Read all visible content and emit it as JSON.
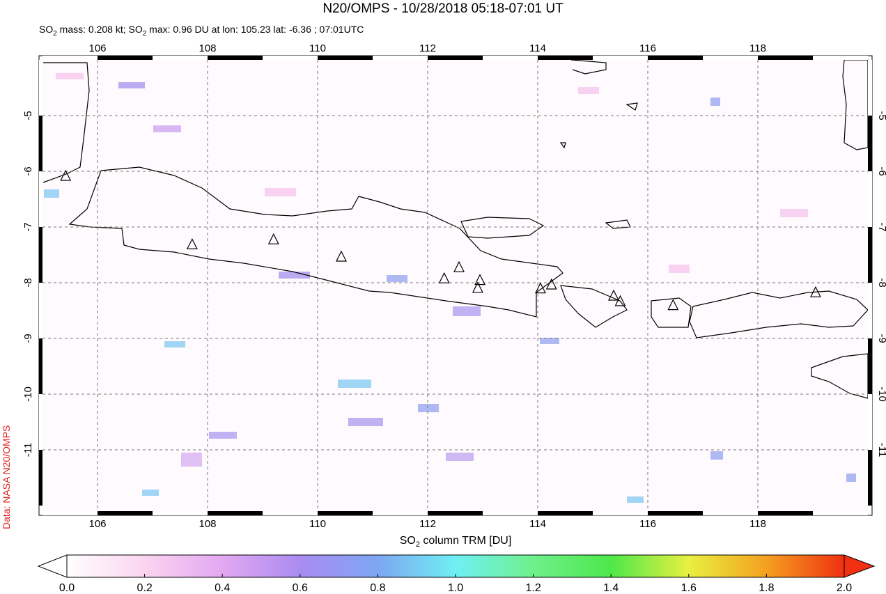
{
  "title": "N20/OMPS - 10/28/2018 05:18-07:01 UT",
  "subtitle": [
    "SO",
    "2",
    " mass: 0.208 kt; SO",
    "2",
    " max: 0.96 DU at lon: 105.23 lat: -6.36 ; 07:01UTC"
  ],
  "credit": "Data: NASA N20/OMPS",
  "map": {
    "lon_range": [
      105,
      120
    ],
    "lat_range": [
      -12.1,
      -4
    ],
    "lon_ticks": [
      106,
      108,
      110,
      112,
      114,
      116,
      118
    ],
    "lat_ticks": [
      -5,
      -6,
      -7,
      -8,
      -9,
      -10,
      -11
    ],
    "volcanoes": [
      [
        105.42,
        -6.1
      ],
      [
        107.72,
        -7.33
      ],
      [
        109.2,
        -7.24
      ],
      [
        110.43,
        -7.55
      ],
      [
        112.3,
        -7.94
      ],
      [
        112.57,
        -7.74
      ],
      [
        112.95,
        -7.97
      ],
      [
        112.91,
        -8.11
      ],
      [
        114.05,
        -8.12
      ],
      [
        114.25,
        -8.05
      ],
      [
        115.38,
        -8.25
      ],
      [
        115.5,
        -8.35
      ],
      [
        116.46,
        -8.42
      ],
      [
        119.05,
        -8.19
      ]
    ]
  },
  "colorbar": {
    "label": [
      "SO",
      "2",
      " column TRM [DU]"
    ],
    "range": [
      0,
      2
    ],
    "colors": [
      "#ffffff",
      "#fbd4f0",
      "#e3a8f2",
      "#a98cf0",
      "#7ea6f2",
      "#6ef0f4",
      "#6ff08c",
      "#4de84a",
      "#e8f040",
      "#f4a020",
      "#f03010"
    ],
    "ticks": [
      {
        "value": 0,
        "label": "0.0"
      },
      {
        "value": 0.2,
        "label": "0.2"
      },
      {
        "value": 0.4,
        "label": "0.4"
      },
      {
        "value": 0.6,
        "label": "0.6"
      },
      {
        "value": 0.8,
        "label": "0.8"
      },
      {
        "value": 1,
        "label": "1.0"
      },
      {
        "value": 1.2,
        "label": "1.2"
      },
      {
        "value": 1.4,
        "label": "1.4"
      },
      {
        "value": 1.6,
        "label": "1.6"
      },
      {
        "value": 1.8,
        "label": "1.8"
      },
      {
        "value": 2,
        "label": "2.0"
      }
    ]
  }
}
